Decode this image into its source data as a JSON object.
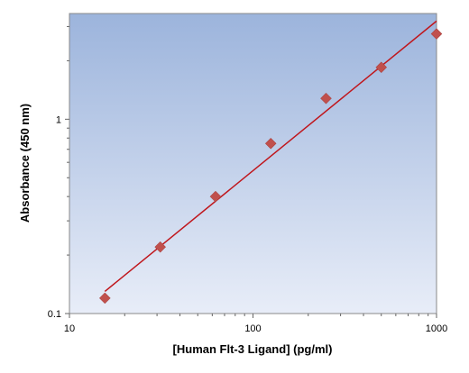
{
  "chart_data": {
    "type": "scatter",
    "title": "",
    "xlabel": "[Human Flt-3 Ligand] (pg/ml)",
    "ylabel": "Absorbance (450 nm)",
    "xscale": "log",
    "yscale": "log",
    "xlim": [
      10,
      1000
    ],
    "ylim": [
      0.1,
      3.5
    ],
    "x_ticks": [
      10,
      100,
      1000
    ],
    "x_tick_labels": [
      "10",
      "100",
      "1000"
    ],
    "y_ticks": [
      0.1,
      1
    ],
    "y_tick_labels": [
      "0.1",
      "1"
    ],
    "grid": false,
    "legend": "none",
    "series": [
      {
        "x": [
          15.6,
          31.25,
          62.5,
          125,
          250,
          500,
          1000
        ],
        "y": [
          0.12,
          0.22,
          0.4,
          0.75,
          1.28,
          1.85,
          2.75
        ],
        "marker": "diamond",
        "color": "#c0504d"
      }
    ],
    "fit_line": {
      "x": [
        15.6,
        1000
      ],
      "y": [
        0.13,
        3.2
      ],
      "color": "#c0161c"
    },
    "colors": {
      "plot_bg_top": "#9cb4dc",
      "plot_bg_bottom": "#e8edf8",
      "marker": "#c0504d",
      "fit_line": "#c0161c"
    }
  }
}
